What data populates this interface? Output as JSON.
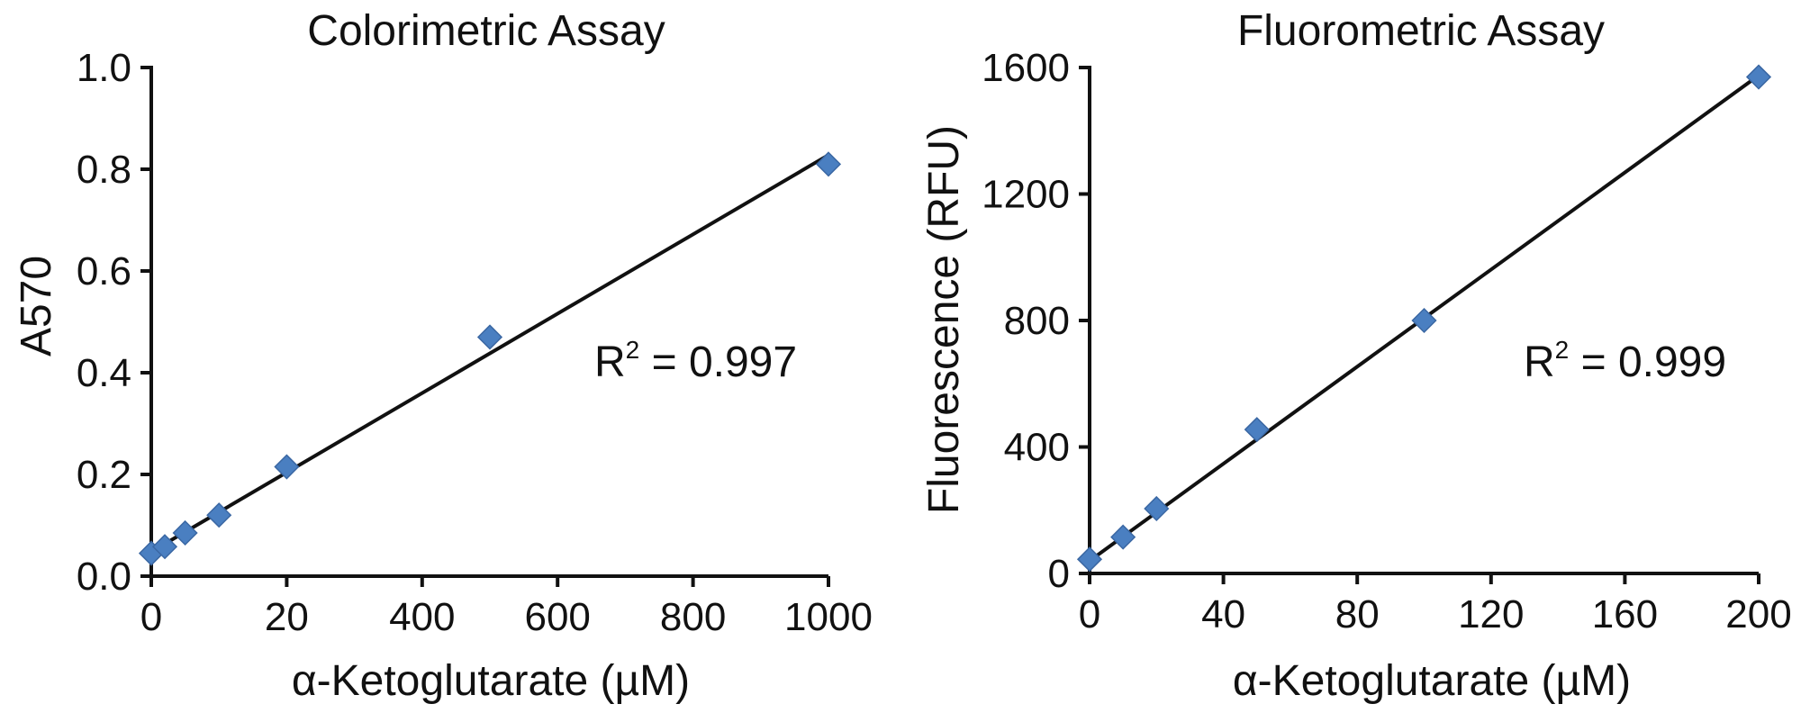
{
  "chart_data": [
    {
      "type": "scatter",
      "title": "Colorimetric Assay",
      "xlabel": "α-Ketoglutarate (µM)",
      "ylabel": "A570",
      "x_tick_labels": [
        "0",
        "20",
        "400",
        "600",
        "800",
        "1000"
      ],
      "y_tick_labels": [
        "0.0",
        "0.2",
        "0.4",
        "0.6",
        "0.8",
        "1.0"
      ],
      "ylim": [
        0,
        1.0
      ],
      "grid": false,
      "legend": "none",
      "series": [
        {
          "x": [
            0,
            2,
            5,
            10,
            20,
            500,
            1000
          ],
          "y": [
            0.045,
            0.058,
            0.085,
            0.12,
            0.215,
            0.47,
            0.81
          ]
        }
      ],
      "fit_line": {
        "x": [
          0,
          1000
        ],
        "y": [
          0.048,
          0.828
        ]
      },
      "annotation": {
        "base": "R",
        "sup": "2",
        "text": " = 0.997"
      },
      "marker": "diamond",
      "colors": {
        "marker": "#4a7fc1"
      }
    },
    {
      "type": "scatter",
      "title": "Fluorometric Assay",
      "xlabel": "α-Ketoglutarate (µM)",
      "ylabel": "Fluorescence (RFU)",
      "x_tick_labels": [
        "0",
        "40",
        "80",
        "120",
        "160",
        "200"
      ],
      "y_tick_labels": [
        "0",
        "400",
        "800",
        "1200",
        "1600"
      ],
      "xlim": [
        0,
        200
      ],
      "ylim": [
        0,
        1600
      ],
      "grid": false,
      "legend": "none",
      "series": [
        {
          "x": [
            0,
            10,
            20,
            50,
            100,
            200
          ],
          "y": [
            45,
            115,
            205,
            455,
            800,
            1570
          ]
        }
      ],
      "fit_line": {
        "x": [
          0,
          200
        ],
        "y": [
          40,
          1575
        ]
      },
      "annotation": {
        "base": "R",
        "sup": "2",
        "text": " = 0.999"
      },
      "marker": "diamond",
      "colors": {
        "marker": "#4a7fc1"
      }
    }
  ]
}
